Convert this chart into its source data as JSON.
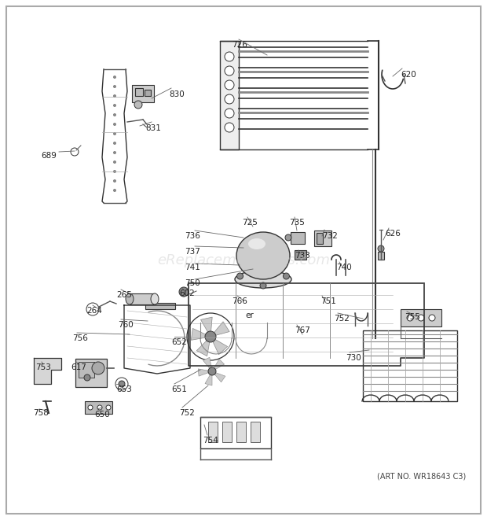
{
  "background_color": "#ffffff",
  "watermark": "eReplacementParts.com",
  "art_no": "(ART NO. WR18643 C3)",
  "figsize": [
    6.2,
    6.61
  ],
  "dpi": 100,
  "label_positions": [
    [
      "830",
      215,
      115
    ],
    [
      "831",
      185,
      158
    ],
    [
      "689",
      52,
      193
    ],
    [
      "726",
      295,
      52
    ],
    [
      "620",
      510,
      90
    ],
    [
      "626",
      490,
      292
    ],
    [
      "736",
      235,
      295
    ],
    [
      "737",
      235,
      315
    ],
    [
      "741",
      235,
      335
    ],
    [
      "750",
      235,
      355
    ],
    [
      "725",
      308,
      278
    ],
    [
      "735",
      368,
      278
    ],
    [
      "732",
      410,
      295
    ],
    [
      "733",
      375,
      320
    ],
    [
      "740",
      428,
      335
    ],
    [
      "766",
      295,
      378
    ],
    [
      "er",
      312,
      396
    ],
    [
      "751",
      408,
      378
    ],
    [
      "752",
      425,
      400
    ],
    [
      "755",
      515,
      398
    ],
    [
      "767",
      375,
      415
    ],
    [
      "730",
      440,
      450
    ],
    [
      "265",
      148,
      370
    ],
    [
      "264",
      110,
      390
    ],
    [
      "602",
      228,
      368
    ],
    [
      "760",
      150,
      408
    ],
    [
      "756",
      92,
      425
    ],
    [
      "652",
      218,
      430
    ],
    [
      "651",
      218,
      490
    ],
    [
      "752",
      228,
      520
    ],
    [
      "617",
      90,
      462
    ],
    [
      "653",
      148,
      490
    ],
    [
      "650",
      120,
      522
    ],
    [
      "753",
      45,
      462
    ],
    [
      "758",
      42,
      520
    ],
    [
      "754",
      258,
      555
    ]
  ]
}
